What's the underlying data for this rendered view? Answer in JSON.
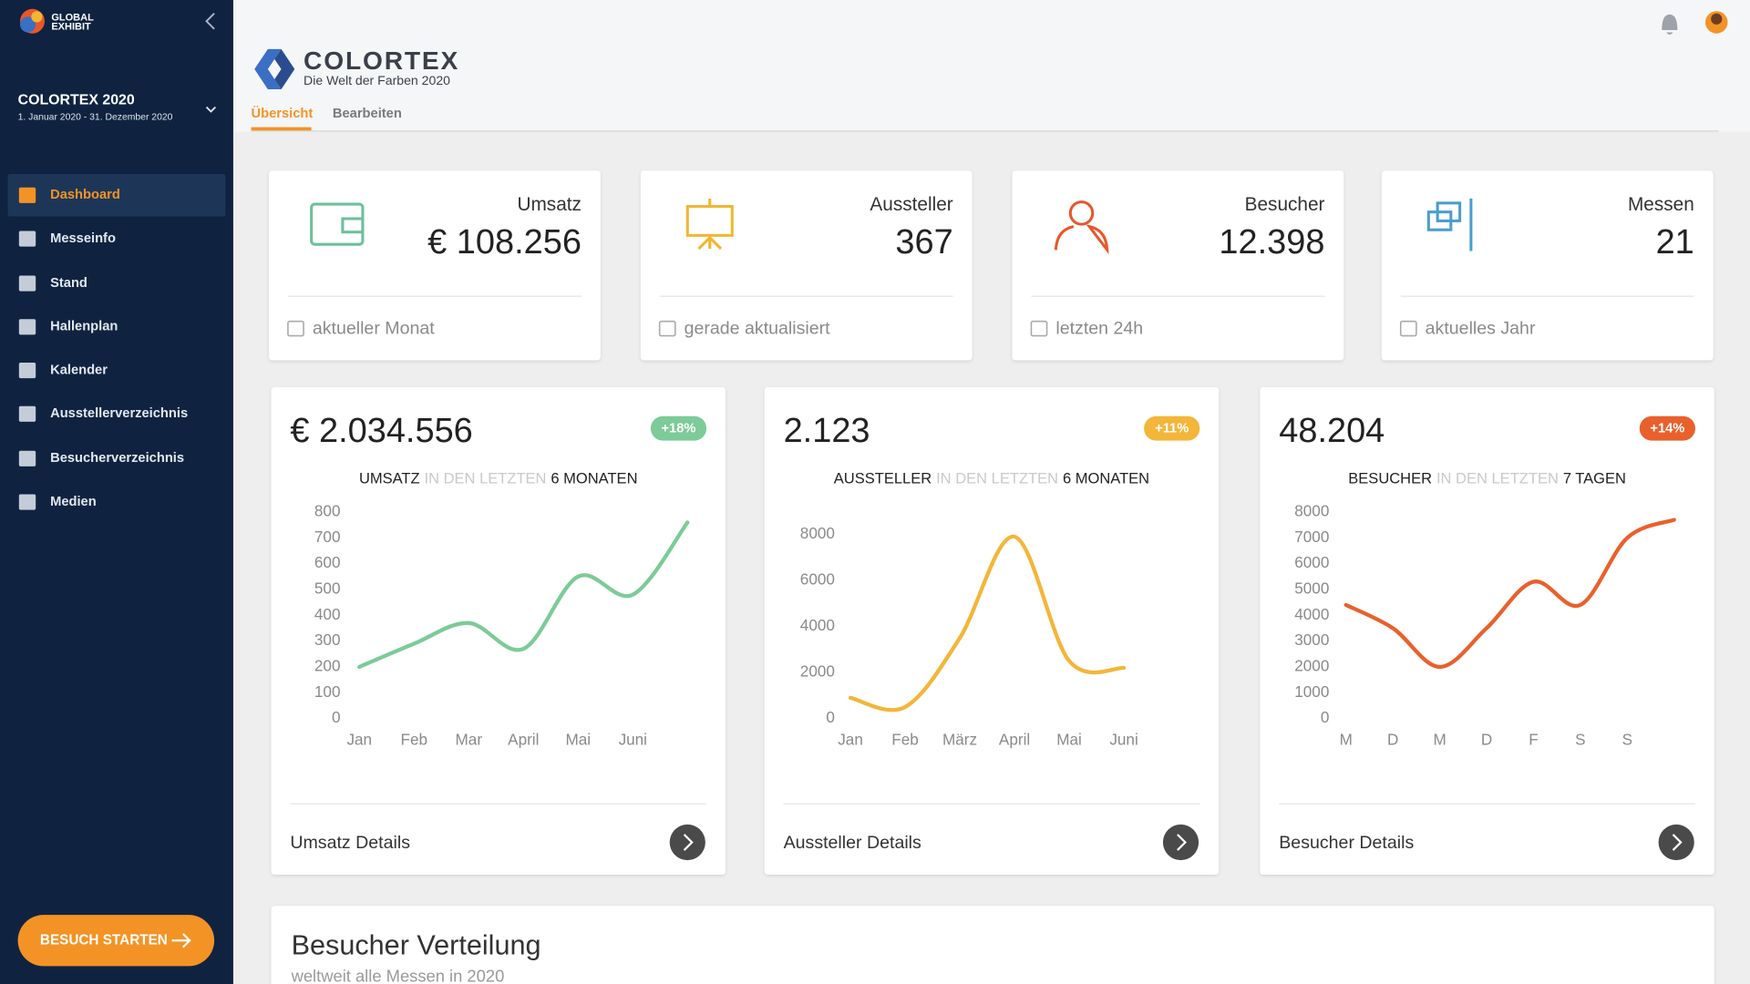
{
  "sidebar": {
    "brand": [
      "GLOBAL",
      "EXHIBIT"
    ],
    "event_title": "COLORTEX 2020",
    "event_dates": "1. Januar 2020 - 31. Dezember 2020",
    "menu": [
      "Dashboard",
      "Messeinfo",
      "Stand",
      "Hallenplan",
      "Kalender",
      "Ausstellerverzeichnis",
      "Besucherverzeichnis",
      "Medien"
    ],
    "button": "BESUCH STARTEN"
  },
  "header": {
    "logo_title": "COLORTEX",
    "logo_subtitle": "Die Welt der Farben 2020",
    "tabs": [
      "Übersicht",
      "Bearbeiten"
    ]
  },
  "stats": [
    {
      "label": "Umsatz",
      "value": "€ 108.256",
      "footer": "aktueller Monat",
      "color": "#6cc09a"
    },
    {
      "label": "Aussteller",
      "value": "367",
      "footer": "gerade aktualisiert",
      "color": "#f2b632"
    },
    {
      "label": "Besucher",
      "value": "12.398",
      "footer": "letzten 24h",
      "color": "#e8572a"
    },
    {
      "label": "Messen",
      "value": "21",
      "footer": "aktuelles Jahr",
      "color": "#4a9ecf"
    }
  ],
  "chart_data": [
    {
      "type": "line",
      "total": "€ 2.034.556",
      "badge": "+18%",
      "title_parts": [
        "UMSATZ",
        "IN DEN LETZTEN",
        "6 MONATEN"
      ],
      "categories": [
        "Jan",
        "Feb",
        "Mar",
        "April",
        "Mai",
        "Juni",
        null
      ],
      "values": [
        200,
        290,
        370,
        270,
        550,
        480,
        760
      ],
      "color": "#7ccb98",
      "ylim": [
        0,
        800
      ],
      "yticks": [
        0,
        100,
        200,
        300,
        400,
        500,
        600,
        700,
        800
      ],
      "footer": "Umsatz Details"
    },
    {
      "type": "line",
      "total": "2.123",
      "badge": "+11%",
      "title_parts": [
        "AUSSTELLER",
        "IN DEN LETZTEN",
        "6 MONATEN"
      ],
      "categories": [
        "Jan",
        "Feb",
        "März",
        "April",
        "Mai",
        "Juni"
      ],
      "values": [
        900,
        500,
        3500,
        7900,
        2500,
        2200
      ],
      "color": "#f3b63a",
      "ylim": [
        0,
        8000
      ],
      "yticks": [
        0,
        2000,
        4000,
        6000,
        8000
      ],
      "footer": "Aussteller Details"
    },
    {
      "type": "line",
      "total": "48.204",
      "badge": "+14%",
      "title_parts": [
        "BESUCHER",
        "IN DEN LETZTEN",
        "7 TAGEN"
      ],
      "categories": [
        "M",
        "D",
        "M",
        "D",
        "F",
        "S",
        "S",
        null
      ],
      "values": [
        4400,
        3500,
        2000,
        3500,
        5300,
        4400,
        7000,
        7700
      ],
      "color": "#e8612c",
      "ylim": [
        0,
        8000
      ],
      "yticks": [
        0,
        1000,
        2000,
        3000,
        4000,
        5000,
        6000,
        7000,
        8000
      ],
      "footer": "Besucher Details"
    }
  ],
  "section": {
    "title": "Besucher Verteilung",
    "subtitle": "weltweit alle Messen in 2020"
  }
}
